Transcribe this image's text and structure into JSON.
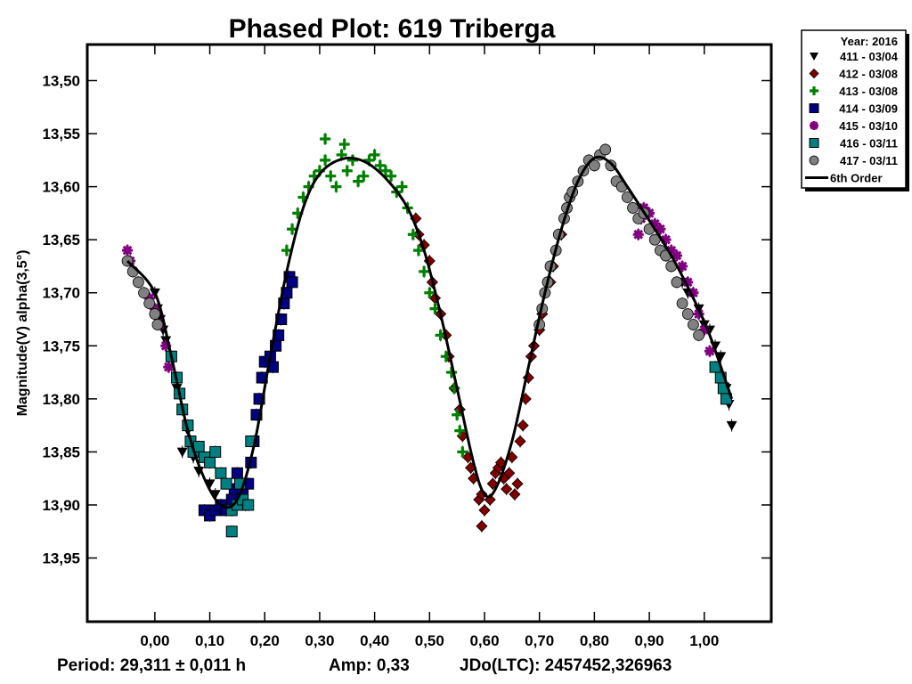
{
  "chart_data": {
    "type": "scatter",
    "title": "Phased Plot: 619 Triberga",
    "xlabel": "",
    "ylabel": "Magnitude(V) alpha(3,5°)",
    "xlim": [
      -0.123,
      1.122
    ],
    "ylim": [
      14.01,
      13.466
    ],
    "y_inverted": true,
    "grid": false,
    "x_ticks": [
      0.0,
      0.1,
      0.2,
      0.3,
      0.4,
      0.5,
      0.6,
      0.7,
      0.8,
      0.9,
      1.0
    ],
    "x_tick_labels": [
      "0,00",
      "0,10",
      "0,20",
      "0,30",
      "0,40",
      "0,50",
      "0,60",
      "0,70",
      "0,80",
      "0,90",
      "1,00"
    ],
    "y_ticks": [
      13.5,
      13.55,
      13.6,
      13.65,
      13.7,
      13.75,
      13.8,
      13.85,
      13.9,
      13.95
    ],
    "y_tick_labels": [
      "13,50",
      "13,55",
      "13,60",
      "13,65",
      "13,70",
      "13,75",
      "13,80",
      "13,85",
      "13,90",
      "13,95"
    ],
    "legend_position": "outside-top-right",
    "legend_title": "Year: 2016",
    "footer": {
      "period": "Period: 29,311 ± 0,011 h",
      "amp": "Amp: 0,33",
      "epoch": "JDo(LTC): 2457452,326963"
    },
    "fit_curve": {
      "name": "6th Order",
      "color": "#000000",
      "points": [
        [
          -0.05,
          13.67
        ],
        [
          0.0,
          13.7
        ],
        [
          0.03,
          13.76
        ],
        [
          0.06,
          13.83
        ],
        [
          0.09,
          13.875
        ],
        [
          0.12,
          13.9
        ],
        [
          0.15,
          13.895
        ],
        [
          0.18,
          13.845
        ],
        [
          0.21,
          13.76
        ],
        [
          0.24,
          13.68
        ],
        [
          0.27,
          13.62
        ],
        [
          0.3,
          13.588
        ],
        [
          0.34,
          13.574
        ],
        [
          0.38,
          13.576
        ],
        [
          0.42,
          13.592
        ],
        [
          0.46,
          13.62
        ],
        [
          0.49,
          13.66
        ],
        [
          0.52,
          13.72
        ],
        [
          0.55,
          13.79
        ],
        [
          0.58,
          13.86
        ],
        [
          0.6,
          13.89
        ],
        [
          0.62,
          13.885
        ],
        [
          0.65,
          13.84
        ],
        [
          0.68,
          13.77
        ],
        [
          0.71,
          13.7
        ],
        [
          0.74,
          13.64
        ],
        [
          0.77,
          13.595
        ],
        [
          0.8,
          13.573
        ],
        [
          0.83,
          13.578
        ],
        [
          0.86,
          13.6
        ],
        [
          0.9,
          13.632
        ],
        [
          0.94,
          13.665
        ],
        [
          0.98,
          13.705
        ],
        [
          1.01,
          13.74
        ],
        [
          1.05,
          13.8
        ]
      ]
    },
    "series": [
      {
        "name": "411 - 03/04",
        "marker": "triangle-down",
        "color": "#000000",
        "points": [
          [
            0.0,
            13.7
          ],
          [
            0.005,
            13.715
          ],
          [
            0.01,
            13.725
          ],
          [
            0.015,
            13.735
          ],
          [
            0.02,
            13.745
          ],
          [
            0.04,
            13.79
          ],
          [
            0.05,
            13.81
          ],
          [
            0.06,
            13.83
          ],
          [
            0.05,
            13.85
          ],
          [
            0.07,
            13.855
          ],
          [
            0.08,
            13.868
          ],
          [
            0.1,
            13.88
          ],
          [
            0.11,
            13.89
          ],
          [
            0.96,
            13.69
          ],
          [
            0.97,
            13.7
          ],
          [
            0.99,
            13.715
          ],
          [
            1.0,
            13.73
          ],
          [
            1.01,
            13.735
          ],
          [
            1.02,
            13.75
          ],
          [
            1.03,
            13.76
          ],
          [
            1.04,
            13.79
          ],
          [
            1.045,
            13.805
          ],
          [
            1.05,
            13.825
          ]
        ]
      },
      {
        "name": "412 - 03/08",
        "marker": "diamond",
        "color": "#800000",
        "points": [
          [
            0.475,
            13.63
          ],
          [
            0.48,
            13.645
          ],
          [
            0.49,
            13.655
          ],
          [
            0.5,
            13.67
          ],
          [
            0.505,
            13.69
          ],
          [
            0.51,
            13.705
          ],
          [
            0.52,
            13.72
          ],
          [
            0.53,
            13.74
          ],
          [
            0.535,
            13.76
          ],
          [
            0.545,
            13.79
          ],
          [
            0.555,
            13.81
          ],
          [
            0.56,
            13.835
          ],
          [
            0.57,
            13.855
          ],
          [
            0.575,
            13.865
          ],
          [
            0.58,
            13.875
          ],
          [
            0.59,
            13.895
          ],
          [
            0.595,
            13.89
          ],
          [
            0.6,
            13.905
          ],
          [
            0.595,
            13.92
          ],
          [
            0.61,
            13.895
          ],
          [
            0.615,
            13.88
          ],
          [
            0.62,
            13.87
          ],
          [
            0.625,
            13.865
          ],
          [
            0.63,
            13.86
          ],
          [
            0.635,
            13.875
          ],
          [
            0.64,
            13.885
          ],
          [
            0.645,
            13.87
          ],
          [
            0.65,
            13.855
          ],
          [
            0.655,
            13.89
          ],
          [
            0.66,
            13.88
          ],
          [
            0.665,
            13.84
          ],
          [
            0.67,
            13.825
          ],
          [
            0.675,
            13.8
          ],
          [
            0.68,
            13.78
          ],
          [
            0.685,
            13.76
          ],
          [
            0.69,
            13.75
          ],
          [
            0.7,
            13.735
          ],
          [
            0.705,
            13.72
          ],
          [
            0.71,
            13.7
          ],
          [
            0.72,
            13.69
          ],
          [
            0.725,
            13.675
          ],
          [
            0.73,
            13.66
          ],
          [
            0.74,
            13.645
          ]
        ]
      },
      {
        "name": "413 - 03/08",
        "marker": "plus",
        "color": "#008000",
        "points": [
          [
            0.24,
            13.66
          ],
          [
            0.25,
            13.64
          ],
          [
            0.26,
            13.625
          ],
          [
            0.27,
            13.61
          ],
          [
            0.28,
            13.6
          ],
          [
            0.29,
            13.59
          ],
          [
            0.3,
            13.585
          ],
          [
            0.31,
            13.575
          ],
          [
            0.31,
            13.555
          ],
          [
            0.32,
            13.59
          ],
          [
            0.33,
            13.6
          ],
          [
            0.34,
            13.57
          ],
          [
            0.345,
            13.56
          ],
          [
            0.35,
            13.585
          ],
          [
            0.36,
            13.575
          ],
          [
            0.37,
            13.595
          ],
          [
            0.38,
            13.59
          ],
          [
            0.39,
            13.575
          ],
          [
            0.4,
            13.57
          ],
          [
            0.41,
            13.58
          ],
          [
            0.42,
            13.585
          ],
          [
            0.43,
            13.59
          ],
          [
            0.44,
            13.605
          ],
          [
            0.45,
            13.6
          ],
          [
            0.46,
            13.62
          ],
          [
            0.47,
            13.645
          ],
          [
            0.48,
            13.66
          ],
          [
            0.49,
            13.68
          ],
          [
            0.5,
            13.7
          ],
          [
            0.51,
            13.715
          ],
          [
            0.52,
            13.74
          ],
          [
            0.53,
            13.76
          ],
          [
            0.54,
            13.775
          ],
          [
            0.545,
            13.79
          ],
          [
            0.55,
            13.815
          ],
          [
            0.555,
            13.83
          ],
          [
            0.56,
            13.85
          ]
        ]
      },
      {
        "name": "414 - 03/09",
        "marker": "square",
        "color": "#000080",
        "points": [
          [
            0.09,
            13.905
          ],
          [
            0.1,
            13.91
          ],
          [
            0.11,
            13.905
          ],
          [
            0.12,
            13.9
          ],
          [
            0.13,
            13.905
          ],
          [
            0.14,
            13.895
          ],
          [
            0.145,
            13.885
          ],
          [
            0.15,
            13.87
          ],
          [
            0.16,
            13.89
          ],
          [
            0.165,
            13.9
          ],
          [
            0.17,
            13.88
          ],
          [
            0.175,
            13.86
          ],
          [
            0.18,
            13.84
          ],
          [
            0.185,
            13.815
          ],
          [
            0.19,
            13.8
          ],
          [
            0.195,
            13.78
          ],
          [
            0.2,
            13.765
          ],
          [
            0.21,
            13.76
          ],
          [
            0.215,
            13.77
          ],
          [
            0.22,
            13.75
          ],
          [
            0.225,
            13.74
          ],
          [
            0.23,
            13.725
          ],
          [
            0.235,
            13.71
          ],
          [
            0.24,
            13.7
          ],
          [
            0.245,
            13.685
          ],
          [
            0.25,
            13.69
          ]
        ]
      },
      {
        "name": "415 - 03/10",
        "marker": "asterisk",
        "color": "#800080",
        "points": [
          [
            -0.05,
            13.66
          ],
          [
            -0.045,
            13.67
          ],
          [
            -0.04,
            13.68
          ],
          [
            -0.03,
            13.69
          ],
          [
            -0.02,
            13.7
          ],
          [
            -0.01,
            13.705
          ],
          [
            0.0,
            13.715
          ],
          [
            0.01,
            13.73
          ],
          [
            0.02,
            13.75
          ],
          [
            0.025,
            13.77
          ],
          [
            0.88,
            13.645
          ],
          [
            0.885,
            13.63
          ],
          [
            0.89,
            13.62
          ],
          [
            0.9,
            13.625
          ],
          [
            0.91,
            13.635
          ],
          [
            0.92,
            13.64
          ],
          [
            0.93,
            13.65
          ],
          [
            0.94,
            13.66
          ],
          [
            0.95,
            13.665
          ],
          [
            0.96,
            13.675
          ],
          [
            0.97,
            13.69
          ],
          [
            0.98,
            13.7
          ],
          [
            0.99,
            13.72
          ],
          [
            1.0,
            13.735
          ],
          [
            1.01,
            13.755
          ],
          [
            1.02,
            13.77
          ]
        ]
      },
      {
        "name": "416 - 03/11",
        "marker": "square",
        "color": "#008080",
        "points": [
          [
            0.03,
            13.76
          ],
          [
            0.04,
            13.78
          ],
          [
            0.045,
            13.795
          ],
          [
            0.05,
            13.81
          ],
          [
            0.06,
            13.825
          ],
          [
            0.065,
            13.84
          ],
          [
            0.07,
            13.85
          ],
          [
            0.08,
            13.845
          ],
          [
            0.09,
            13.855
          ],
          [
            0.1,
            13.86
          ],
          [
            0.11,
            13.85
          ],
          [
            0.12,
            13.87
          ],
          [
            0.13,
            13.88
          ],
          [
            0.14,
            13.905
          ],
          [
            0.15,
            13.9
          ],
          [
            0.155,
            13.88
          ],
          [
            0.16,
            13.895
          ],
          [
            0.17,
            13.9
          ],
          [
            0.14,
            13.925
          ],
          [
            0.175,
            13.84
          ],
          [
            1.02,
            13.77
          ],
          [
            1.03,
            13.78
          ],
          [
            1.035,
            13.79
          ],
          [
            1.04,
            13.8
          ]
        ]
      },
      {
        "name": "417 - 03/11",
        "marker": "circle",
        "color": "#808080",
        "points": [
          [
            -0.05,
            13.67
          ],
          [
            -0.04,
            13.68
          ],
          [
            -0.03,
            13.69
          ],
          [
            -0.02,
            13.7
          ],
          [
            -0.01,
            13.71
          ],
          [
            0.0,
            13.72
          ],
          [
            0.005,
            13.73
          ],
          [
            0.7,
            13.73
          ],
          [
            0.705,
            13.715
          ],
          [
            0.71,
            13.7
          ],
          [
            0.715,
            13.69
          ],
          [
            0.72,
            13.675
          ],
          [
            0.73,
            13.66
          ],
          [
            0.735,
            13.645
          ],
          [
            0.745,
            13.63
          ],
          [
            0.75,
            13.62
          ],
          [
            0.755,
            13.61
          ],
          [
            0.76,
            13.605
          ],
          [
            0.77,
            13.595
          ],
          [
            0.78,
            13.585
          ],
          [
            0.79,
            13.575
          ],
          [
            0.8,
            13.58
          ],
          [
            0.81,
            13.57
          ],
          [
            0.82,
            13.565
          ],
          [
            0.83,
            13.58
          ],
          [
            0.84,
            13.595
          ],
          [
            0.85,
            13.6
          ],
          [
            0.86,
            13.61
          ],
          [
            0.87,
            13.62
          ],
          [
            0.88,
            13.63
          ],
          [
            0.89,
            13.625
          ],
          [
            0.9,
            13.64
          ],
          [
            0.91,
            13.65
          ],
          [
            0.92,
            13.66
          ],
          [
            0.93,
            13.665
          ],
          [
            0.94,
            13.675
          ],
          [
            0.95,
            13.69
          ],
          [
            0.96,
            13.71
          ],
          [
            0.97,
            13.72
          ],
          [
            0.98,
            13.73
          ],
          [
            0.99,
            13.74
          ]
        ]
      }
    ]
  }
}
